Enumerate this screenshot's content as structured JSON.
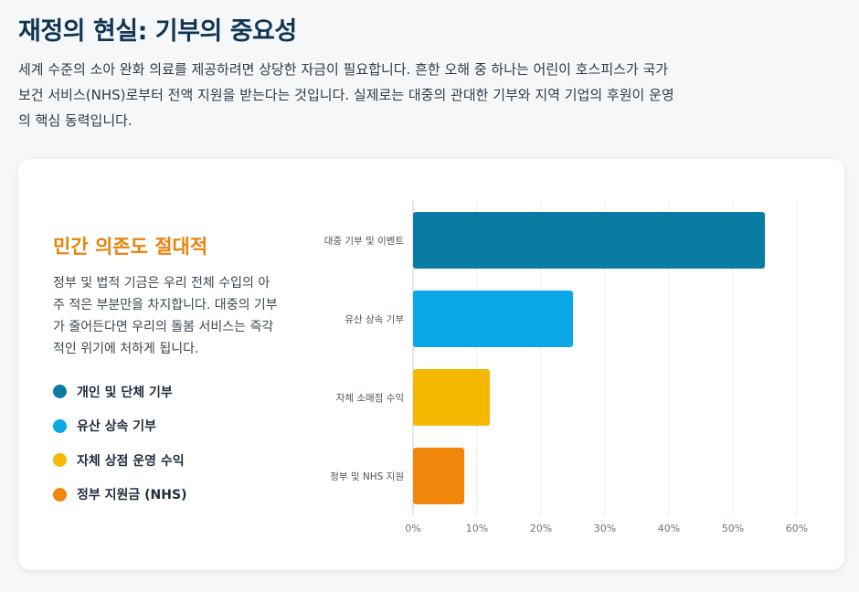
{
  "page": {
    "title": "재정의 현실: 기부의 중요성",
    "intro": "세계 수준의 소아 완화 의료를 제공하려면 상당한 자금이 필요합니다. 흔한 오해 중 하나는 어린이 호스피스가 국가 보건 서비스(NHS)로부터 전액 지원을 받는다는 것입니다. 실제로는 대중의 관대한 기부와 지역 기업의 후원이 운영의 핵심 동력입니다."
  },
  "card": {
    "heading": "민간 의존도 절대적",
    "text": "정부 및 법적 기금은 우리 전체 수입의 아주 적은 부분만을 차지합니다. 대중의 기부가 줄어든다면 우리의 돌봄 서비스는 즉각적인 위기에 처하게 됩니다.",
    "legend": [
      {
        "label": "개인 및 단체 기부",
        "color": "#0a7ca3"
      },
      {
        "label": "유산 상속 기부",
        "color": "#0aa8e6"
      },
      {
        "label": "자체 상점 운영 수익",
        "color": "#f5b800"
      },
      {
        "label": "정부 지원금 (NHS)",
        "color": "#f0860a"
      }
    ]
  },
  "chart_data": {
    "type": "bar",
    "orientation": "horizontal",
    "categories": [
      "대중 기부 및 이벤트",
      "유산 상속 기부",
      "자체 소매점 수익",
      "정부 및 NHS 지원"
    ],
    "values": [
      55,
      25,
      12,
      8
    ],
    "colors": [
      "#0a7ca3",
      "#0aa8e6",
      "#f5b800",
      "#f0860a"
    ],
    "xlim": [
      0,
      60
    ],
    "xticks": [
      0,
      10,
      20,
      30,
      40,
      50,
      60
    ],
    "tick_suffix": "%",
    "grid": true,
    "title": "",
    "xlabel": "",
    "ylabel": ""
  }
}
